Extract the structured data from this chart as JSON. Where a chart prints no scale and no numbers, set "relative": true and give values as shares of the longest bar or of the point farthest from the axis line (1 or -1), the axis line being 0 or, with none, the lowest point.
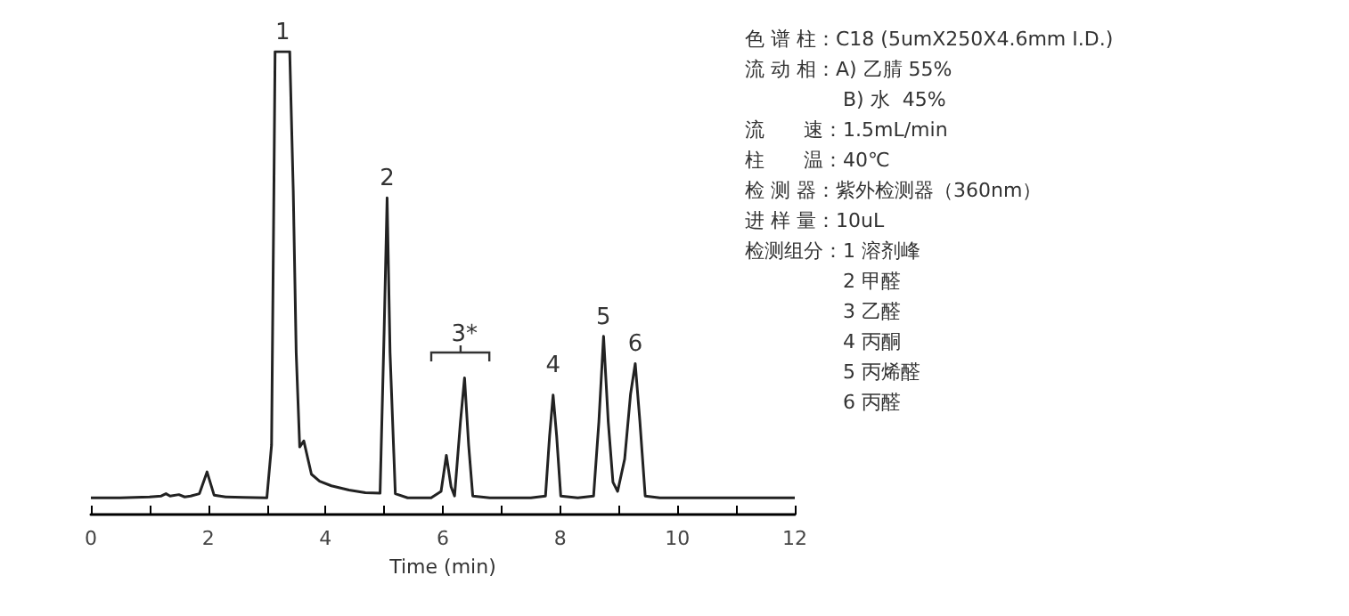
{
  "chart_data": {
    "type": "line",
    "relative": true,
    "xlabel": "Time (min)",
    "xlim": [
      0,
      12
    ],
    "xticks": [
      0,
      {
        "value": 1,
        "label": null
      },
      2,
      {
        "value": 3,
        "label": null
      },
      4,
      {
        "value": 5,
        "label": null
      },
      6,
      {
        "value": 7,
        "label": null
      },
      8,
      {
        "value": 9,
        "label": null
      },
      10,
      {
        "value": 11,
        "label": null
      },
      12
    ],
    "tick_labels": "x",
    "grid": false,
    "marker": "none",
    "line_style": "solid",
    "series": [
      {
        "color": "#222222",
        "x": [
          0,
          0.5,
          1.0,
          1.2,
          1.28,
          1.35,
          1.5,
          1.6,
          1.7,
          1.85,
          1.98,
          2.1,
          2.3,
          2.6,
          3.0,
          3.08,
          3.12,
          3.14,
          3.39,
          3.45,
          3.5,
          3.56,
          3.63,
          3.7,
          3.76,
          3.9,
          4.1,
          4.4,
          4.68,
          4.93,
          5.0,
          5.05,
          5.1,
          5.19,
          5.4,
          5.8,
          5.97,
          6.06,
          6.14,
          6.2,
          6.3,
          6.37,
          6.44,
          6.51,
          6.8,
          7.5,
          7.75,
          7.82,
          7.88,
          7.94,
          8.01,
          8.3,
          8.57,
          8.66,
          8.74,
          8.82,
          8.9,
          8.98,
          9.1,
          9.2,
          9.28,
          9.36,
          9.45,
          9.7,
          10.5,
          11.5,
          12
        ],
        "values": [
          0.036,
          0.036,
          0.038,
          0.04,
          0.045,
          0.04,
          0.043,
          0.038,
          0.04,
          0.045,
          0.092,
          0.042,
          0.038,
          0.037,
          0.036,
          0.15,
          0.7,
          1,
          1,
          0.7,
          0.35,
          0.146,
          0.159,
          0.12,
          0.087,
          0.072,
          0.062,
          0.053,
          0.047,
          0.046,
          0.4,
          0.684,
          0.35,
          0.045,
          0.036,
          0.036,
          0.05,
          0.128,
          0.06,
          0.04,
          0.2,
          0.295,
          0.15,
          0.04,
          0.036,
          0.036,
          0.04,
          0.17,
          0.258,
          0.17,
          0.04,
          0.036,
          0.04,
          0.2,
          0.385,
          0.2,
          0.07,
          0.05,
          0.12,
          0.26,
          0.326,
          0.2,
          0.04,
          0.036,
          0.036,
          0.036,
          0.036
        ]
      }
    ],
    "annotations": [
      {
        "text": "1",
        "x": 3.27,
        "y": 1
      },
      {
        "text": "2",
        "x": 5.05,
        "y": 0.684
      },
      {
        "text": "3*",
        "x": 6.37,
        "y": 0.295
      },
      {
        "text": "4",
        "x": 7.88,
        "y": 0.28
      },
      {
        "text": "5",
        "x": 8.74,
        "y": 0.385
      },
      {
        "text": "6",
        "x": 9.28,
        "y": 0.326
      },
      "色 谱 柱：C18 (5umX250X4.6mm I.D.)",
      "流 动 相：A) 乙腈 55%",
      "B) 水  45%",
      "流　　速：1.5mL/min",
      "柱　　温：40℃",
      "检 测 器：紫外检测器（360nm）",
      "进 样 量：10uL",
      "检测组分：1 溶剂峰",
      "2 甲醛",
      "3 乙醛",
      "4 丙酮",
      "5 丙烯醛",
      "6 丙醛"
    ]
  }
}
